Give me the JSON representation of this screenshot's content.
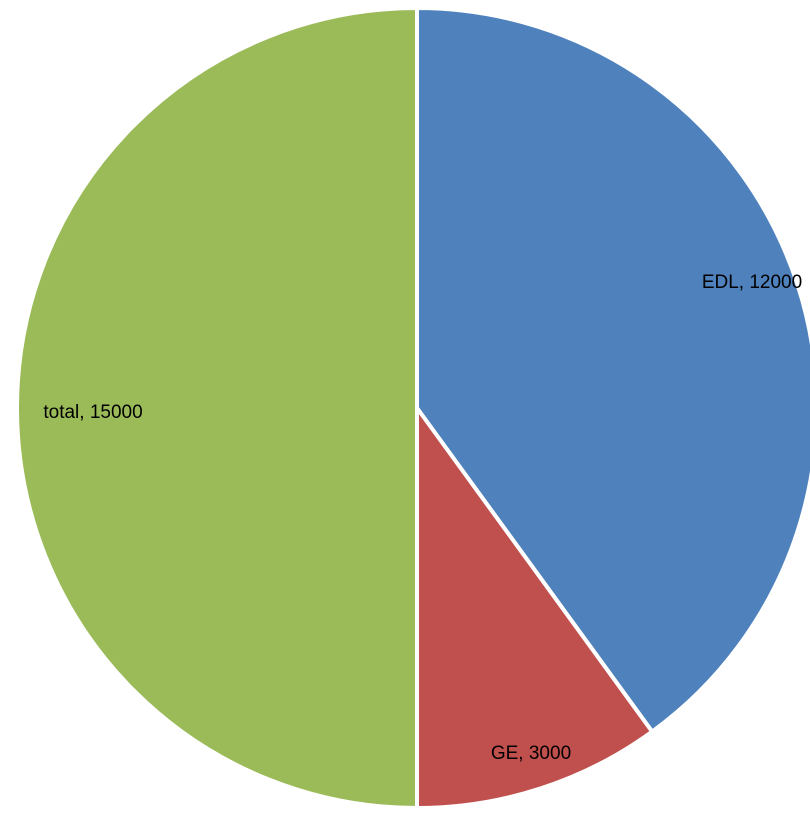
{
  "chart_data": {
    "type": "pie",
    "categories": [
      "EDL",
      "GE",
      "total"
    ],
    "values": [
      12000,
      3000,
      15000
    ],
    "data_labels": [
      "EDL, 12000",
      "GE, 3000",
      "total, 15000"
    ],
    "colors": [
      "#4f81bd",
      "#c0504d",
      "#9bbb59"
    ],
    "start_angle_deg": 0,
    "direction": "clockwise",
    "legend": "none"
  }
}
